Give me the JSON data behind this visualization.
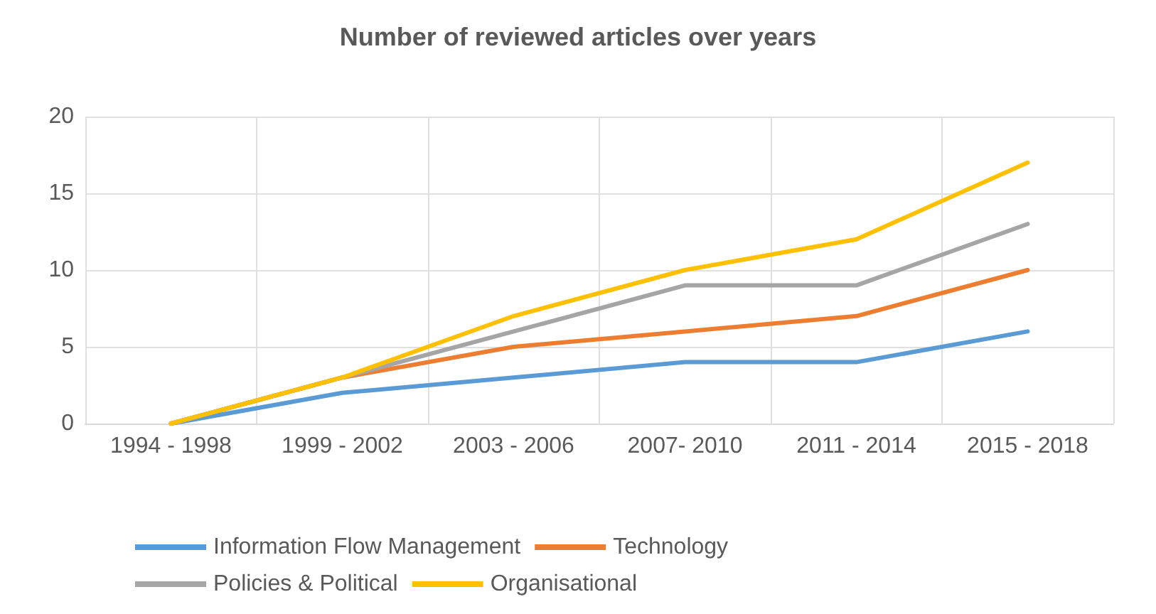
{
  "chart_data": {
    "type": "line",
    "title": "Number of reviewed articles over years",
    "categories": [
      "1994 - 1998",
      "1999 - 2002",
      "2003 - 2006",
      "2007- 2010",
      "2011 - 2014",
      "2015 - 2018"
    ],
    "series": [
      {
        "name": "Information Flow Management",
        "color": "#5b9bd5",
        "values": [
          0,
          2,
          3,
          4,
          4,
          6
        ]
      },
      {
        "name": "Technology",
        "color": "#ed7d31",
        "values": [
          0,
          3,
          5,
          6,
          7,
          10
        ]
      },
      {
        "name": "Policies & Political",
        "color": "#a5a5a5",
        "values": [
          0,
          3,
          6,
          9,
          9,
          13
        ]
      },
      {
        "name": "Organisational",
        "color": "#ffc000",
        "values": [
          0,
          3,
          7,
          10,
          12,
          17
        ]
      }
    ],
    "ylim": [
      0,
      20
    ],
    "yticks": [
      0,
      5,
      10,
      15,
      20
    ],
    "grid": true,
    "legend": "bottom",
    "marker": "none",
    "line_style": "solid"
  }
}
